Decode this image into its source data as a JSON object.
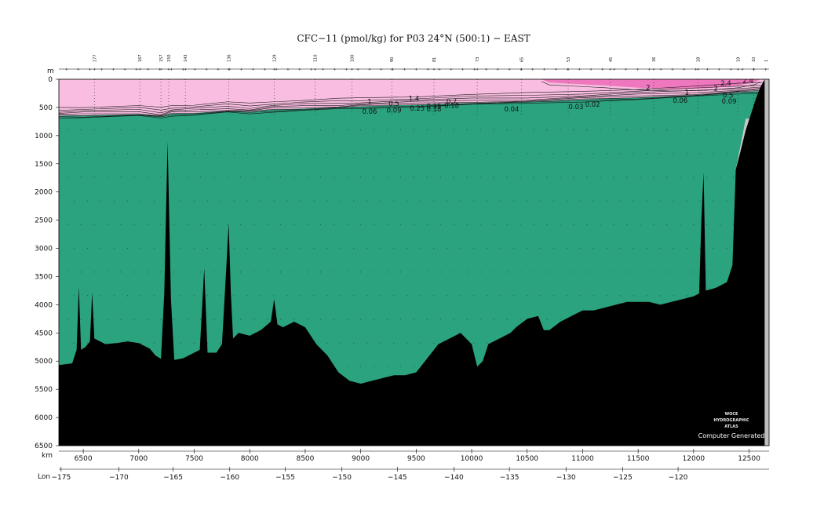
{
  "chart_data": {
    "type": "heatmap",
    "title": "CFC−11 (pmol/kg) for P03 24°N (500:1) − EAST",
    "xlabel": "km",
    "ylabel": "m",
    "xlabel2": "Lon",
    "xlim": [
      6280,
      12680
    ],
    "ylim": [
      6500,
      0
    ],
    "x_ticks": [
      6500,
      7000,
      7500,
      8000,
      8500,
      9000,
      9500,
      10000,
      10500,
      11000,
      11500,
      12000,
      12500
    ],
    "y_ticks": [
      0,
      500,
      1000,
      1500,
      2000,
      2500,
      3000,
      3500,
      4000,
      4500,
      5000,
      5500,
      6000,
      6500
    ],
    "lon_ticks": [
      {
        "km": 6300,
        "label": "−175"
      },
      {
        "km": 6820,
        "label": "−170"
      },
      {
        "km": 7310,
        "label": "−165"
      },
      {
        "km": 7820,
        "label": "−160"
      },
      {
        "km": 8320,
        "label": "−155"
      },
      {
        "km": 8830,
        "label": "−150"
      },
      {
        "km": 9330,
        "label": "−145"
      },
      {
        "km": 9840,
        "label": "−140"
      },
      {
        "km": 10340,
        "label": "−135"
      },
      {
        "km": 10850,
        "label": "−130"
      },
      {
        "km": 11360,
        "label": "−125"
      },
      {
        "km": 11860,
        "label": "−120"
      }
    ],
    "station_labels": [
      {
        "km": 6600,
        "label": "177"
      },
      {
        "km": 7010,
        "label": "167"
      },
      {
        "km": 7200,
        "label": "157"
      },
      {
        "km": 7270,
        "label": "150"
      },
      {
        "km": 7420,
        "label": "143"
      },
      {
        "km": 7810,
        "label": "136"
      },
      {
        "km": 8220,
        "label": "129"
      },
      {
        "km": 8590,
        "label": "110"
      },
      {
        "km": 8920,
        "label": "100"
      },
      {
        "km": 9280,
        "label": "90"
      },
      {
        "km": 9660,
        "label": "81"
      },
      {
        "km": 10050,
        "label": "73"
      },
      {
        "km": 10450,
        "label": "65"
      },
      {
        "km": 10870,
        "label": "53"
      },
      {
        "km": 11250,
        "label": "45"
      },
      {
        "km": 11640,
        "label": "36"
      },
      {
        "km": 12040,
        "label": "28"
      },
      {
        "km": 12400,
        "label": "19"
      },
      {
        "km": 12540,
        "label": "10"
      },
      {
        "km": 12650,
        "label": "1"
      }
    ],
    "contour_labels": [
      {
        "value": "1",
        "km": 9080,
        "depth": 440
      },
      {
        "value": "0.5",
        "km": 9300,
        "depth": 470
      },
      {
        "value": "1.4",
        "km": 9480,
        "depth": 380
      },
      {
        "value": "0.35",
        "km": 9660,
        "depth": 520
      },
      {
        "value": "0.7",
        "km": 9820,
        "depth": 430
      },
      {
        "value": "0.25",
        "km": 9510,
        "depth": 560
      },
      {
        "value": "0.18",
        "km": 9660,
        "depth": 570
      },
      {
        "value": "0.18",
        "km": 9820,
        "depth": 510
      },
      {
        "value": "0.06",
        "km": 9080,
        "depth": 610
      },
      {
        "value": "0.09",
        "km": 9300,
        "depth": 590
      },
      {
        "value": "0.04",
        "km": 10360,
        "depth": 570
      },
      {
        "value": "0.03",
        "km": 10940,
        "depth": 530
      },
      {
        "value": "0.02",
        "km": 11090,
        "depth": 490
      },
      {
        "value": "2",
        "km": 11590,
        "depth": 190
      },
      {
        "value": "2",
        "km": 12200,
        "depth": 200
      },
      {
        "value": "2.4",
        "km": 12290,
        "depth": 110
      },
      {
        "value": "2.4",
        "km": 12490,
        "depth": 60
      },
      {
        "value": "1",
        "km": 11940,
        "depth": 270
      },
      {
        "value": "0.5",
        "km": 12310,
        "depth": 330
      },
      {
        "value": "0.06",
        "km": 11880,
        "depth": 420
      },
      {
        "value": "0.09",
        "km": 12320,
        "depth": 430
      }
    ],
    "bottom_profile": [
      [
        6280,
        5070
      ],
      [
        6400,
        5040
      ],
      [
        6440,
        4800
      ],
      [
        6460,
        3680
      ],
      [
        6480,
        4800
      ],
      [
        6520,
        4750
      ],
      [
        6560,
        4650
      ],
      [
        6580,
        3780
      ],
      [
        6600,
        4600
      ],
      [
        6700,
        4700
      ],
      [
        6800,
        4680
      ],
      [
        6900,
        4650
      ],
      [
        7000,
        4680
      ],
      [
        7100,
        4780
      ],
      [
        7150,
        4900
      ],
      [
        7200,
        4960
      ],
      [
        7230,
        3800
      ],
      [
        7260,
        1100
      ],
      [
        7290,
        3900
      ],
      [
        7320,
        4980
      ],
      [
        7400,
        4950
      ],
      [
        7500,
        4850
      ],
      [
        7550,
        4800
      ],
      [
        7590,
        3350
      ],
      [
        7620,
        4850
      ],
      [
        7700,
        4850
      ],
      [
        7750,
        4700
      ],
      [
        7790,
        3300
      ],
      [
        7810,
        2550
      ],
      [
        7830,
        3800
      ],
      [
        7850,
        4600
      ],
      [
        7900,
        4500
      ],
      [
        8000,
        4550
      ],
      [
        8100,
        4450
      ],
      [
        8190,
        4300
      ],
      [
        8220,
        3900
      ],
      [
        8250,
        4350
      ],
      [
        8300,
        4400
      ],
      [
        8400,
        4300
      ],
      [
        8500,
        4400
      ],
      [
        8550,
        4550
      ],
      [
        8600,
        4700
      ],
      [
        8700,
        4900
      ],
      [
        8800,
        5200
      ],
      [
        8900,
        5350
      ],
      [
        9000,
        5400
      ],
      [
        9100,
        5350
      ],
      [
        9200,
        5300
      ],
      [
        9300,
        5250
      ],
      [
        9400,
        5250
      ],
      [
        9500,
        5200
      ],
      [
        9600,
        4950
      ],
      [
        9700,
        4700
      ],
      [
        9800,
        4600
      ],
      [
        9900,
        4500
      ],
      [
        10000,
        4700
      ],
      [
        10050,
        5100
      ],
      [
        10100,
        5000
      ],
      [
        10150,
        4700
      ],
      [
        10250,
        4600
      ],
      [
        10350,
        4500
      ],
      [
        10400,
        4400
      ],
      [
        10500,
        4250
      ],
      [
        10600,
        4200
      ],
      [
        10650,
        4450
      ],
      [
        10700,
        4450
      ],
      [
        10800,
        4300
      ],
      [
        10900,
        4200
      ],
      [
        11000,
        4100
      ],
      [
        11100,
        4100
      ],
      [
        11200,
        4050
      ],
      [
        11300,
        4000
      ],
      [
        11400,
        3950
      ],
      [
        11500,
        3950
      ],
      [
        11600,
        3950
      ],
      [
        11700,
        4000
      ],
      [
        11800,
        3950
      ],
      [
        11900,
        3900
      ],
      [
        12000,
        3850
      ],
      [
        12050,
        3800
      ],
      [
        12070,
        2500
      ],
      [
        12090,
        1650
      ],
      [
        12110,
        3750
      ],
      [
        12200,
        3700
      ],
      [
        12300,
        3600
      ],
      [
        12350,
        3300
      ],
      [
        12380,
        1600
      ],
      [
        12420,
        1300
      ],
      [
        12470,
        900
      ],
      [
        12520,
        600
      ],
      [
        12560,
        350
      ],
      [
        12600,
        150
      ],
      [
        12640,
        0
      ],
      [
        12680,
        0
      ]
    ],
    "bottom_label": "Computer Generated",
    "logo_lines": [
      "WOCE",
      "HYDROGRAPHIC",
      "ATLAS"
    ],
    "colors": {
      "deep_water": "#2ba37f",
      "upper_water": "#f8bde0",
      "high_value": "#ee77bd",
      "bottom": "#000000",
      "contour": "#1b1b1b"
    }
  }
}
